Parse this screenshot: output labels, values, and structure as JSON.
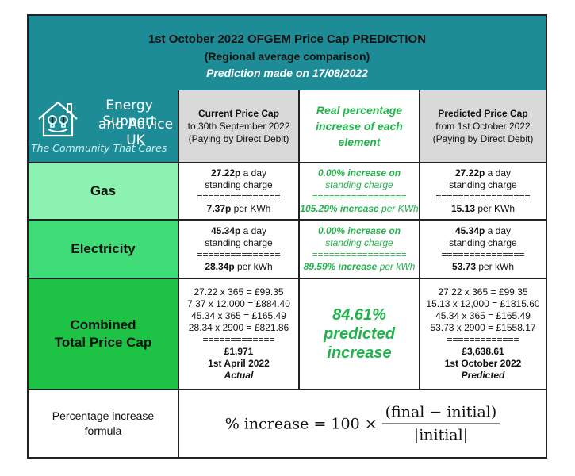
{
  "header": {
    "line1": "1st October 2022 OFGEM Price Cap PREDICTION",
    "line2": "(Regional average comparison)",
    "line3": "Prediction made on 17/08/2022"
  },
  "logo": {
    "line1": "Energy Support",
    "line2": "and Advice UK",
    "tagline": "The Community That Cares"
  },
  "columns": {
    "current": {
      "title": "Current Price Cap",
      "sub1": "to 30th September 2022",
      "sub2": "(Paying by Direct Debit)"
    },
    "increase": {
      "title": "Real percentage increase of each element"
    },
    "predicted": {
      "title": "Predicted Price Cap",
      "sub1": "from 1st October 2022",
      "sub2": "(Paying by Direct Debit)"
    }
  },
  "rows": {
    "gas": {
      "label": "Gas",
      "current": {
        "standing_value": "27.22p",
        "standing_suffix": " a day",
        "standing_label": "standing charge",
        "separator": "===============",
        "unit_value": "7.37p",
        "unit_suffix": " per KWh"
      },
      "increase": {
        "standing_text": "0.00% increase on",
        "standing_label": "standing charge",
        "separator": "=================",
        "unit_pct": "105.29% increase",
        "unit_suffix": " per KWh"
      },
      "predicted": {
        "standing_value": "27.22p",
        "standing_suffix": " a day",
        "standing_label": "standing charge",
        "separator": "=================",
        "unit_value": "15.13",
        "unit_suffix": " per KWh"
      }
    },
    "electricity": {
      "label": "Electricity",
      "current": {
        "standing_value": "45.34p",
        "standing_suffix": " a day",
        "standing_label": "standing charge",
        "separator": "===============",
        "unit_value": "28.34p",
        "unit_suffix": " per kWh"
      },
      "increase": {
        "standing_text": "0.00% increase on",
        "standing_label": "standing charge",
        "separator": "=================",
        "unit_pct": "89.59% increase",
        "unit_suffix": " per kWh"
      },
      "predicted": {
        "standing_value": "45.34p",
        "standing_suffix": " a day",
        "standing_label": "standing charge",
        "separator": "===============",
        "unit_value": "53.73",
        "unit_suffix": " per kWh"
      }
    },
    "combined": {
      "label_line1": "Combined",
      "label_line2": "Total Price Cap",
      "current": {
        "calc1": "27.22 x 365 = £99.35",
        "calc2": "7.37 x 12,000 = £884.40",
        "calc3": "45.34 x 365 = £165.49",
        "calc4": "28.34 x 2900 = £821.86",
        "separator": "=============",
        "total": "£1,971",
        "date": "1st April 2022",
        "status": "Actual"
      },
      "increase": {
        "line1": "84.61%",
        "line2": "predicted",
        "line3": "increase"
      },
      "predicted": {
        "calc1": "27.22 x 365 = £99.35",
        "calc2": "15.13 x 12,000 = £1815.60",
        "calc3": "45.34 x 365 = £165.49",
        "calc4": "53.73 x 2900 = £1558.17",
        "separator": "=============",
        "total": "£3,638.61",
        "date": "1st October 2022",
        "status": "Predicted"
      }
    }
  },
  "formula": {
    "label": "Percentage increase formula",
    "lhs": "% increase = 100 ×",
    "numerator": "(final − initial)",
    "denominator": "|initial|"
  },
  "colors": {
    "header_bg": "#1e8c97",
    "gas_bg": "#8cf2b1",
    "electricity_bg": "#3fdc77",
    "combined_bg": "#1ec244",
    "accent_green_text": "#22b24c"
  },
  "icons": {
    "logo": "house-with-bulbs-icon"
  }
}
